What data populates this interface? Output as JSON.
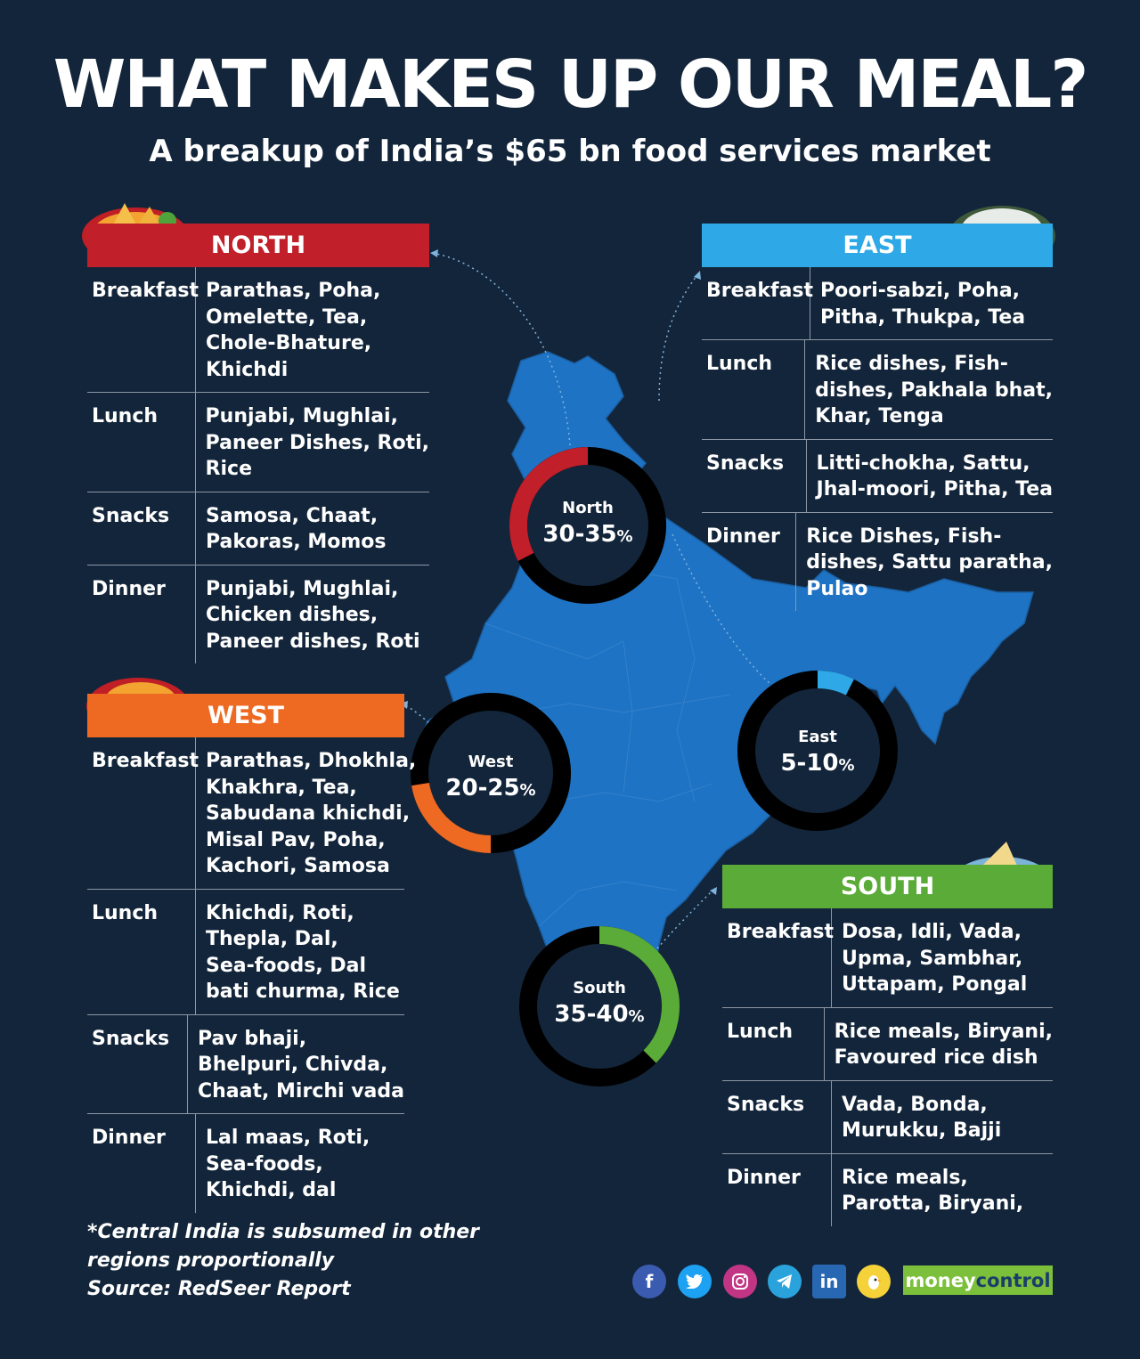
{
  "title": "WHAT MAKES UP OUR MEAL?",
  "subtitle": "A breakup of India’s $65 bn food services market",
  "colors": {
    "background": "#13253a",
    "map": "#1e73c4",
    "north": "#c11f2a",
    "east": "#2ea8e6",
    "west": "#ee6a23",
    "south": "#5aab38",
    "ring_base": "#000000"
  },
  "regions": {
    "north": {
      "name": "NORTH",
      "share_label": "North",
      "share": "30-35",
      "share_unit": "%",
      "share_fraction": 0.325,
      "meals": [
        {
          "meal": "Breakfast",
          "dishes": [
            "Parathas, Poha,",
            "Omelette, Tea,",
            "Chole-Bhature,",
            "Khichdi"
          ]
        },
        {
          "meal": "Lunch",
          "dishes": [
            "Punjabi, Mughlai,",
            "Paneer Dishes, Roti,",
            "Rice"
          ]
        },
        {
          "meal": "Snacks",
          "dishes": [
            "Samosa, Chaat,",
            "Pakoras, Momos"
          ]
        },
        {
          "meal": "Dinner",
          "dishes": [
            "Punjabi, Mughlai,",
            "Chicken dishes,",
            "Paneer dishes, Roti"
          ]
        }
      ]
    },
    "east": {
      "name": "EAST",
      "share_label": "East",
      "share": "5-10",
      "share_unit": "%",
      "share_fraction": 0.075,
      "meals": [
        {
          "meal": "Breakfast",
          "dishes": [
            "Poori-sabzi, Poha,",
            "Pitha, Thukpa, Tea"
          ]
        },
        {
          "meal": "Lunch",
          "dishes": [
            "Rice dishes, Fish-",
            "dishes, Pakhala bhat,",
            "Khar, Tenga"
          ]
        },
        {
          "meal": "Snacks",
          "dishes": [
            "Litti-chokha, Sattu,",
            "Jhal-moori, Pitha, Tea"
          ]
        },
        {
          "meal": "Dinner",
          "dishes": [
            "Rice Dishes, Fish-",
            "dishes, Sattu paratha,",
            "Pulao"
          ]
        }
      ]
    },
    "west": {
      "name": "WEST",
      "share_label": "West",
      "share": "20-25",
      "share_unit": "%",
      "share_fraction": 0.225,
      "meals": [
        {
          "meal": "Breakfast",
          "dishes": [
            "Parathas, Dhokhla,",
            "Khakhra, Tea,",
            "Sabudana khichdi,",
            "Misal Pav, Poha,",
            "Kachori, Samosa"
          ]
        },
        {
          "meal": "Lunch",
          "dishes": [
            "Khichdi, Roti,",
            "Thepla, Dal,",
            "Sea-foods, Dal",
            "bati churma, Rice"
          ]
        },
        {
          "meal": "Snacks",
          "dishes": [
            "Pav bhaji,",
            "Bhelpuri, Chivda,",
            "Chaat, Mirchi vada"
          ]
        },
        {
          "meal": "Dinner",
          "dishes": [
            "Lal maas, Roti,",
            "Sea-foods,",
            "Khichdi, dal"
          ]
        }
      ]
    },
    "south": {
      "name": "SOUTH",
      "share_label": "South",
      "share": "35-40",
      "share_unit": "%",
      "share_fraction": 0.375,
      "meals": [
        {
          "meal": "Breakfast",
          "dishes": [
            "Dosa, Idli, Vada,",
            "Upma, Sambhar,",
            "Uttapam, Pongal"
          ]
        },
        {
          "meal": "Lunch",
          "dishes": [
            "Rice meals, Biryani,",
            "Favoured rice dish"
          ]
        },
        {
          "meal": "Snacks",
          "dishes": [
            "Vada, Bonda,",
            "Murukku, Bajji"
          ]
        },
        {
          "meal": "Dinner",
          "dishes": [
            "Rice meals,",
            "Parotta, Biryani,"
          ]
        }
      ]
    }
  },
  "footnote": {
    "line1": "*Central India is subsumed in other",
    "line2": "regions proportionally",
    "line3": "Source: RedSeer Report"
  },
  "social": {
    "icons": [
      "facebook-icon",
      "twitter-icon",
      "instagram-icon",
      "telegram-icon",
      "linkedin-icon",
      "koo-icon"
    ]
  },
  "brand": {
    "part1": "money",
    "part2": "control"
  }
}
